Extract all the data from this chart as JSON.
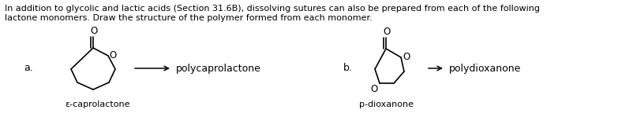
{
  "background_color": "#ffffff",
  "text_top_line1": "In addition to glycolic and lactic acids (Section 31.6B), dissolving sutures can also be prepared from each of the following",
  "text_top_line2": "lactone monomers. Draw the structure of the polymer formed from each monomer.",
  "label_a": "a.",
  "label_b": "b.",
  "label_epscaprolactone": "ε-caprolactone",
  "label_pdioxanone": "p-dioxanone",
  "label_polycaprolactone": "polycaprolactone",
  "label_polydioxanone": "polydioxanone",
  "fig_width": 8.02,
  "fig_height": 1.49,
  "dpi": 100,
  "text_fontsize": 8.0,
  "label_fontsize": 9.0,
  "struct_fontsize": 8.5
}
